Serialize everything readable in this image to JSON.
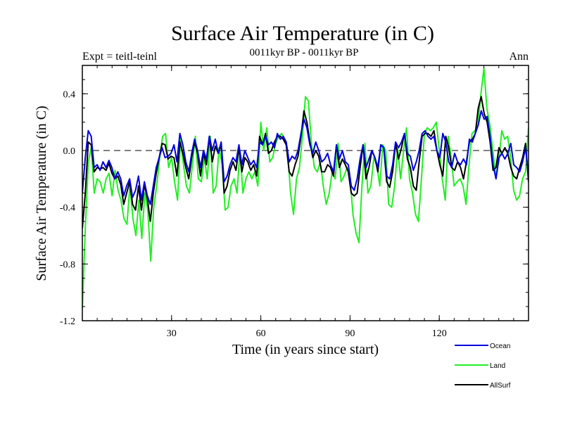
{
  "chart_data": {
    "type": "line",
    "title": "Surface Air Temperature (in C)",
    "subtitle": "0011kyr BP - 0011kyr BP",
    "left_label": "Expt = teitl-teinl",
    "right_label": "Ann",
    "xlabel": "Time (in years since start)",
    "ylabel": "Surface Air Temperature (in C)",
    "xlim": [
      0,
      150
    ],
    "ylim": [
      -1.2,
      0.6
    ],
    "xticks": [
      30,
      60,
      90,
      120
    ],
    "xtick_labels": [
      "30",
      "60",
      "90",
      "120"
    ],
    "yticks": [
      -1.2,
      -0.8,
      -0.4,
      0.0,
      0.4
    ],
    "ytick_labels": [
      "-1.2",
      "-0.8",
      "-0.4",
      "0.0",
      "0.4"
    ],
    "reference_line": 0.0,
    "legend_position": "bottom-right",
    "series": [
      {
        "name": "Ocean",
        "color": "#0000dd",
        "values": [
          -0.3,
          -0.05,
          0.14,
          0.1,
          -0.12,
          -0.1,
          -0.14,
          -0.08,
          -0.12,
          -0.07,
          -0.12,
          -0.2,
          -0.15,
          -0.2,
          -0.32,
          -0.25,
          -0.2,
          -0.33,
          -0.28,
          -0.18,
          -0.35,
          -0.22,
          -0.32,
          -0.38,
          -0.25,
          -0.12,
          -0.05,
          0.02,
          -0.05,
          -0.04,
          -0.02,
          0.04,
          -0.08,
          0.12,
          0.04,
          -0.08,
          -0.15,
          -0.02,
          0.08,
          0.0,
          -0.12,
          0.0,
          -0.06,
          0.1,
          0.0,
          0.08,
          -0.02,
          0.06,
          -0.22,
          -0.18,
          -0.1,
          -0.05,
          -0.08,
          0.04,
          -0.1,
          0.0,
          -0.05,
          -0.1,
          -0.07,
          -0.12,
          0.06,
          0.04,
          0.1,
          0.04,
          0.06,
          0.02,
          0.12,
          0.08,
          0.1,
          0.06,
          -0.08,
          -0.04,
          -0.06,
          0.0,
          0.12,
          0.22,
          0.16,
          0.04,
          -0.02,
          0.06,
          0.0,
          -0.08,
          -0.06,
          -0.02,
          -0.1,
          -0.15,
          0.04,
          -0.06,
          0.0,
          -0.08,
          -0.1,
          -0.25,
          -0.28,
          -0.2,
          -0.06,
          0.04,
          -0.12,
          -0.06,
          0.0,
          -0.05,
          -0.12,
          0.04,
          0.02,
          -0.18,
          -0.2,
          -0.1,
          0.06,
          0.02,
          0.06,
          0.12,
          -0.02,
          -0.04,
          -0.14,
          -0.08,
          0.0,
          0.12,
          0.14,
          0.1,
          0.08,
          0.1,
          0.0,
          -0.05,
          0.12,
          0.06,
          -0.08,
          -0.12,
          -0.02,
          -0.08,
          -0.1,
          -0.06,
          -0.1,
          0.08,
          0.06,
          0.12,
          0.18,
          0.28,
          0.22,
          0.24,
          0.1,
          -0.1,
          -0.2,
          -0.05,
          -0.02,
          -0.06,
          -0.02,
          0.05,
          -0.1,
          -0.12,
          -0.15,
          -0.08,
          0.02,
          -0.18
        ]
      },
      {
        "name": "Land",
        "color": "#22ee22",
        "values": [
          -1.12,
          -0.55,
          -0.08,
          0.02,
          -0.3,
          -0.2,
          -0.22,
          -0.3,
          -0.2,
          -0.16,
          -0.32,
          -0.14,
          -0.28,
          -0.35,
          -0.48,
          -0.52,
          -0.25,
          -0.48,
          -0.6,
          -0.35,
          -0.62,
          -0.3,
          -0.42,
          -0.78,
          -0.4,
          -0.25,
          -0.05,
          0.1,
          0.12,
          -0.12,
          -0.05,
          -0.22,
          -0.35,
          0.08,
          -0.1,
          -0.25,
          -0.3,
          -0.1,
          0.1,
          -0.2,
          -0.22,
          -0.05,
          -0.2,
          0.1,
          -0.3,
          -0.25,
          0.02,
          -0.1,
          -0.42,
          -0.4,
          -0.25,
          -0.2,
          -0.3,
          0.0,
          -0.3,
          -0.2,
          -0.15,
          -0.2,
          -0.15,
          -0.25,
          0.2,
          0.0,
          0.16,
          -0.08,
          -0.05,
          0.05,
          0.1,
          0.12,
          0.08,
          0.0,
          -0.3,
          -0.45,
          -0.2,
          -0.12,
          0.1,
          0.38,
          0.35,
          0.05,
          -0.12,
          -0.15,
          -0.08,
          -0.25,
          -0.38,
          -0.3,
          -0.15,
          -0.2,
          0.05,
          -0.22,
          -0.18,
          -0.12,
          -0.2,
          -0.45,
          -0.58,
          -0.65,
          -0.25,
          0.05,
          -0.3,
          -0.25,
          -0.05,
          -0.1,
          -0.25,
          0.04,
          0.0,
          -0.38,
          -0.4,
          -0.25,
          0.02,
          -0.2,
          0.0,
          0.16,
          -0.2,
          -0.3,
          -0.45,
          -0.5,
          -0.2,
          0.12,
          0.16,
          0.14,
          0.16,
          0.2,
          0.0,
          -0.2,
          -0.35,
          0.1,
          -0.05,
          -0.25,
          -0.22,
          -0.2,
          -0.25,
          -0.38,
          -0.1,
          0.12,
          0.14,
          0.18,
          0.4,
          0.58,
          0.3,
          0.18,
          0.0,
          -0.18,
          -0.08,
          0.14,
          0.08,
          0.1,
          -0.05,
          -0.28,
          -0.35,
          -0.32,
          -0.2,
          -0.15,
          0.16
        ]
      },
      {
        "name": "AllSurf",
        "color": "#000000",
        "values": [
          -0.55,
          -0.3,
          0.06,
          0.04,
          -0.15,
          -0.12,
          -0.13,
          -0.12,
          -0.14,
          -0.09,
          -0.16,
          -0.2,
          -0.18,
          -0.24,
          -0.38,
          -0.3,
          -0.22,
          -0.38,
          -0.42,
          -0.25,
          -0.42,
          -0.24,
          -0.34,
          -0.5,
          -0.3,
          -0.16,
          -0.05,
          0.05,
          0.04,
          -0.06,
          -0.04,
          -0.05,
          -0.18,
          0.06,
          -0.02,
          -0.12,
          -0.2,
          -0.05,
          0.06,
          -0.02,
          -0.18,
          -0.02,
          -0.1,
          0.1,
          -0.08,
          0.03,
          -0.02,
          0.04,
          -0.3,
          -0.25,
          -0.14,
          -0.08,
          -0.14,
          0.02,
          -0.15,
          -0.05,
          -0.08,
          -0.14,
          -0.1,
          -0.18,
          0.1,
          0.04,
          0.12,
          -0.02,
          0.0,
          0.06,
          0.1,
          0.1,
          0.08,
          0.04,
          -0.15,
          -0.18,
          -0.1,
          -0.04,
          0.1,
          0.28,
          0.2,
          0.06,
          -0.05,
          0.0,
          -0.04,
          -0.15,
          -0.15,
          -0.1,
          -0.12,
          -0.18,
          0.04,
          -0.12,
          -0.06,
          -0.1,
          -0.15,
          -0.3,
          -0.32,
          -0.3,
          -0.12,
          0.04,
          -0.2,
          -0.12,
          0.0,
          -0.05,
          -0.15,
          0.04,
          0.02,
          -0.22,
          -0.26,
          -0.15,
          0.05,
          -0.06,
          0.02,
          0.12,
          -0.06,
          -0.12,
          -0.25,
          -0.28,
          -0.08,
          0.1,
          0.12,
          0.12,
          0.1,
          0.14,
          0.0,
          -0.1,
          -0.18,
          0.1,
          0.02,
          -0.12,
          -0.14,
          -0.08,
          -0.12,
          -0.2,
          -0.08,
          0.06,
          0.08,
          0.12,
          0.3,
          0.38,
          0.26,
          0.2,
          0.06,
          -0.14,
          -0.12,
          0.02,
          -0.02,
          0.02,
          -0.02,
          -0.12,
          -0.18,
          -0.2,
          -0.12,
          -0.05,
          0.05,
          -0.22
        ]
      }
    ]
  }
}
